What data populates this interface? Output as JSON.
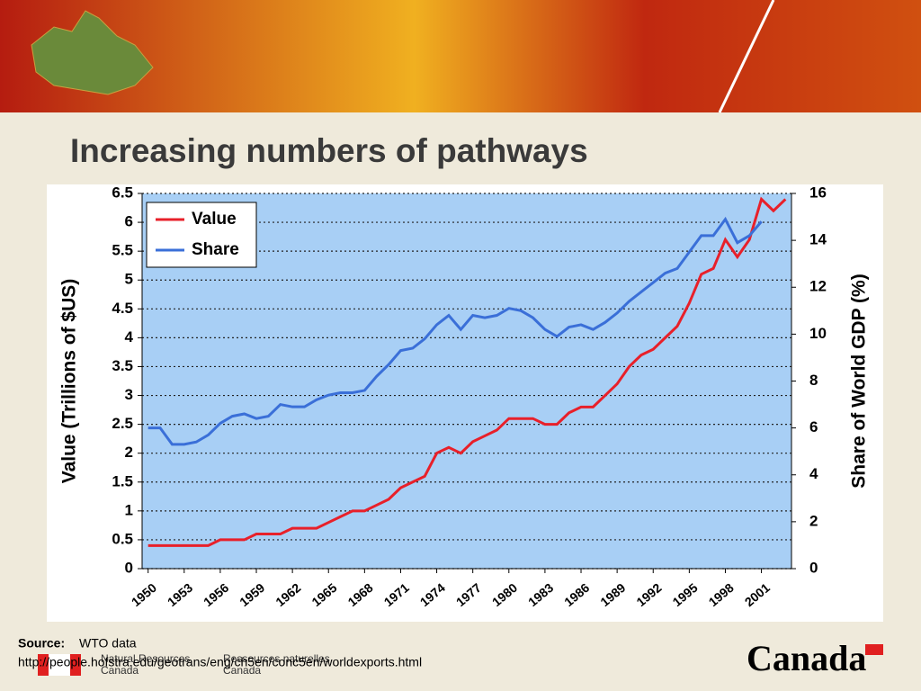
{
  "slide": {
    "title": "Increasing numbers of pathways",
    "source_label": "Source:",
    "source_text": "WTO data",
    "url": "http://people.hofstra.edu/geotrans/eng/ch5en/conc5en/worldexports.html",
    "dept_en": [
      "Natural Resources",
      "Canada"
    ],
    "dept_fr": [
      "Ressources naturelles",
      "Canada"
    ],
    "wordmark": "Canada"
  },
  "chart_data": {
    "type": "line",
    "x": [
      1950,
      1951,
      1952,
      1953,
      1954,
      1955,
      1956,
      1957,
      1958,
      1959,
      1960,
      1961,
      1962,
      1963,
      1964,
      1965,
      1966,
      1967,
      1968,
      1969,
      1970,
      1971,
      1972,
      1973,
      1974,
      1975,
      1976,
      1977,
      1978,
      1979,
      1980,
      1981,
      1982,
      1983,
      1984,
      1985,
      1986,
      1987,
      1988,
      1989,
      1990,
      1991,
      1992,
      1993,
      1994,
      1995,
      1996,
      1997,
      1998,
      1999,
      2000,
      2001,
      2002,
      2003
    ],
    "xlim": [
      1949.5,
      2003.5
    ],
    "xticks": [
      1950,
      1953,
      1956,
      1959,
      1962,
      1965,
      1968,
      1971,
      1974,
      1977,
      1980,
      1983,
      1986,
      1989,
      1992,
      1995,
      1998,
      2001
    ],
    "ylabel": "Value (Trillions of $US)",
    "y2label": "Share of World GDP (%)",
    "ylim": [
      0,
      6.5
    ],
    "yticks": [
      0,
      0.5,
      1,
      1.5,
      2,
      2.5,
      3,
      3.5,
      4,
      4.5,
      5,
      5.5,
      6,
      6.5
    ],
    "y2lim": [
      0,
      16
    ],
    "y2ticks": [
      0,
      2,
      4,
      6,
      8,
      10,
      12,
      14,
      16
    ],
    "grid": true,
    "legend": "upper left",
    "series": [
      {
        "name": "Value",
        "color": "#e8202a",
        "values": [
          0.4,
          0.4,
          0.4,
          0.4,
          0.4,
          0.4,
          0.5,
          0.5,
          0.5,
          0.6,
          0.6,
          0.6,
          0.7,
          0.7,
          0.7,
          0.8,
          0.9,
          1.0,
          1.0,
          1.1,
          1.2,
          1.4,
          1.5,
          1.6,
          2.0,
          2.1,
          2.0,
          2.2,
          2.3,
          2.4,
          2.6,
          2.6,
          2.6,
          2.5,
          2.5,
          2.7,
          2.8,
          2.8,
          3.0,
          3.2,
          3.5,
          3.7,
          3.8,
          4.0,
          4.2,
          4.6,
          5.1,
          5.2,
          5.7,
          5.4,
          5.7,
          6.4,
          6.2,
          6.4
        ]
      },
      {
        "name": "Share",
        "color": "#3a6fd8",
        "axis": "y2",
        "values": [
          6.0,
          6.0,
          5.3,
          5.3,
          5.4,
          5.7,
          6.2,
          6.5,
          6.6,
          6.4,
          6.5,
          7.0,
          6.9,
          6.9,
          7.2,
          7.4,
          7.5,
          7.5,
          7.6,
          8.2,
          8.7,
          9.3,
          9.4,
          9.8,
          10.4,
          10.8,
          10.2,
          10.8,
          10.7,
          10.8,
          11.1,
          11.0,
          10.7,
          10.2,
          9.9,
          10.3,
          10.4,
          10.2,
          10.5,
          10.9,
          11.4,
          11.8,
          12.2,
          12.6,
          12.8,
          13.5,
          14.2,
          14.2,
          14.9,
          13.9,
          14.2,
          14.8,
          null,
          null
        ]
      }
    ]
  }
}
